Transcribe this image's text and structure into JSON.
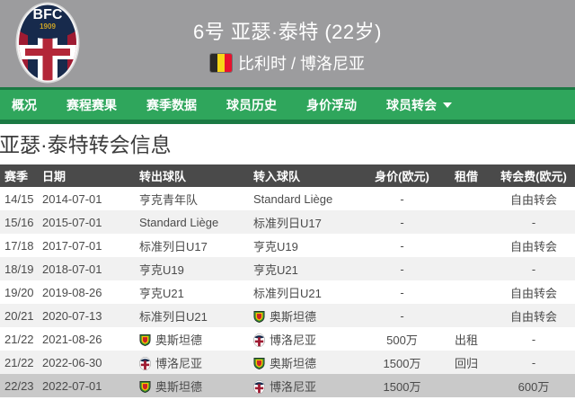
{
  "colors": {
    "header-bg": "#9c9c9e",
    "nav-green": "#2fa65c",
    "nav-green-dark": "#1b7a44",
    "table-header-bg": "#4a4a4a",
    "row-alt-bg": "#f1f1f1",
    "row-highlight-bg": "#c9c9c9",
    "text-dark": "#4b4b4b",
    "belgium-black": "#2b2926",
    "belgium-yellow": "#f7d618",
    "belgium-red": "#e8112d",
    "bologna-navy": "#172a4c",
    "bologna-red": "#9e1b32",
    "oostende-green": "#2d8a34",
    "oostende-yellow": "#f2c500",
    "oostende-red": "#cc2229"
  },
  "header": {
    "player_title": "6号 亚瑟·泰特 (22岁)",
    "nationality_club": "比利时 / 博洛尼亚",
    "crest_text": "BFC",
    "crest_year": "1909"
  },
  "nav": {
    "items": [
      {
        "id": "overview",
        "label": "概况"
      },
      {
        "id": "schedule-results",
        "label": "赛程赛果"
      },
      {
        "id": "season-stats",
        "label": "赛季数据"
      },
      {
        "id": "player-history",
        "label": "球员历史"
      },
      {
        "id": "value-trend",
        "label": "身价浮动"
      },
      {
        "id": "player-transfers",
        "label": "球员转会",
        "has_caret": true
      }
    ]
  },
  "section_title": "亚瑟·泰特转会信息",
  "table": {
    "headers": [
      "赛季",
      "日期",
      "转出球队",
      "转入球队",
      "身价(欧元)",
      "租借",
      "转会费(欧元)"
    ],
    "rows": [
      {
        "season": "14/15",
        "date": "2014-07-01",
        "from": {
          "name": "亨克青年队"
        },
        "to": {
          "name": "Standard Liège"
        },
        "value": "-",
        "loan": "",
        "fee": "自由转会"
      },
      {
        "season": "15/16",
        "date": "2015-07-01",
        "from": {
          "name": "Standard Liège"
        },
        "to": {
          "name": "标准列日U17"
        },
        "value": "-",
        "loan": "",
        "fee": "-"
      },
      {
        "season": "17/18",
        "date": "2017-07-01",
        "from": {
          "name": "标准列日U17"
        },
        "to": {
          "name": "亨克U19"
        },
        "value": "-",
        "loan": "",
        "fee": "自由转会"
      },
      {
        "season": "18/19",
        "date": "2018-07-01",
        "from": {
          "name": "亨克U19"
        },
        "to": {
          "name": "亨克U21"
        },
        "value": "-",
        "loan": "",
        "fee": "-"
      },
      {
        "season": "19/20",
        "date": "2019-08-26",
        "from": {
          "name": "亨克U21"
        },
        "to": {
          "name": "标准列日U21"
        },
        "value": "-",
        "loan": "",
        "fee": "自由转会"
      },
      {
        "season": "20/21",
        "date": "2020-07-13",
        "from": {
          "name": "标准列日U21"
        },
        "to": {
          "name": "奥斯坦德",
          "icon": "oostende"
        },
        "value": "-",
        "loan": "",
        "fee": "自由转会"
      },
      {
        "season": "21/22",
        "date": "2021-08-26",
        "from": {
          "name": "奥斯坦德",
          "icon": "oostende"
        },
        "to": {
          "name": "博洛尼亚",
          "icon": "bologna"
        },
        "value": "500万",
        "loan": "出租",
        "fee": "-"
      },
      {
        "season": "21/22",
        "date": "2022-06-30",
        "from": {
          "name": "博洛尼亚",
          "icon": "bologna"
        },
        "to": {
          "name": "奥斯坦德",
          "icon": "oostende"
        },
        "value": "1500万",
        "loan": "回归",
        "fee": "-"
      },
      {
        "season": "22/23",
        "date": "2022-07-01",
        "from": {
          "name": "奥斯坦德",
          "icon": "oostende"
        },
        "to": {
          "name": "博洛尼亚",
          "icon": "bologna"
        },
        "value": "1500万",
        "loan": "",
        "fee": "600万",
        "highlight": true
      }
    ]
  }
}
